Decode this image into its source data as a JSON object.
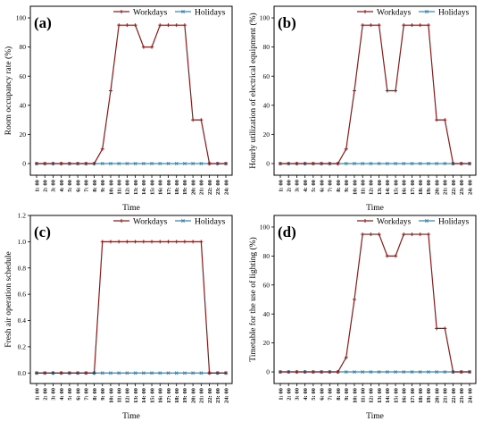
{
  "colors": {
    "workdays": "#8B1A1A",
    "holidays": "#3A86B0",
    "axis": "#000000"
  },
  "chart_data": [
    {
      "type": "line",
      "panel_label": "(a)",
      "xlabel": "Time",
      "ylabel": "Room occupancy rate (%)",
      "categories": [
        "1: 00",
        "2: 00",
        "3: 00",
        "4: 00",
        "5: 00",
        "6: 00",
        "7: 00",
        "8: 00",
        "9: 00",
        "10: 00",
        "11: 00",
        "12: 00",
        "13: 00",
        "14: 00",
        "15: 00",
        "16: 00",
        "17: 00",
        "18: 00",
        "19: 00",
        "20: 00",
        "21: 00",
        "22: 00",
        "23: 00",
        "24: 00"
      ],
      "ylim": [
        -8,
        108
      ],
      "yticks": [
        0,
        20,
        40,
        60,
        80,
        100
      ],
      "ytick_labels": [
        "0",
        "20",
        "40",
        "60",
        "80",
        "100"
      ],
      "legend": "top-right",
      "series": [
        {
          "name": "Workdays",
          "values": [
            0,
            0,
            0,
            0,
            0,
            0,
            0,
            0,
            10,
            50,
            95,
            95,
            95,
            80,
            80,
            95,
            95,
            95,
            95,
            30,
            30,
            0,
            0,
            0
          ]
        },
        {
          "name": "Holidays",
          "values": [
            0,
            0,
            0,
            0,
            0,
            0,
            0,
            0,
            0,
            0,
            0,
            0,
            0,
            0,
            0,
            0,
            0,
            0,
            0,
            0,
            0,
            0,
            0,
            0
          ]
        }
      ]
    },
    {
      "type": "line",
      "panel_label": "(b)",
      "xlabel": "Time",
      "ylabel": "Hourly utilization of electrical equipment (%)",
      "categories": [
        "1: 00",
        "2: 00",
        "3: 00",
        "4: 00",
        "5: 00",
        "6: 00",
        "7: 00",
        "8: 00",
        "9: 00",
        "10: 00",
        "11: 00",
        "12: 00",
        "13: 00",
        "14: 00",
        "15: 00",
        "16: 00",
        "17: 00",
        "18: 00",
        "19: 00",
        "20: 00",
        "21: 00",
        "22: 00",
        "23: 00",
        "24: 00"
      ],
      "ylim": [
        -8,
        108
      ],
      "yticks": [
        0,
        20,
        40,
        60,
        80,
        100
      ],
      "ytick_labels": [
        "0",
        "20",
        "40",
        "60",
        "80",
        "100"
      ],
      "legend": "top-right",
      "series": [
        {
          "name": "Workdays",
          "values": [
            0,
            0,
            0,
            0,
            0,
            0,
            0,
            0,
            10,
            50,
            95,
            95,
            95,
            50,
            50,
            95,
            95,
            95,
            95,
            30,
            30,
            0,
            0,
            0
          ]
        },
        {
          "name": "Holidays",
          "values": [
            0,
            0,
            0,
            0,
            0,
            0,
            0,
            0,
            0,
            0,
            0,
            0,
            0,
            0,
            0,
            0,
            0,
            0,
            0,
            0,
            0,
            0,
            0,
            0
          ]
        }
      ]
    },
    {
      "type": "line",
      "panel_label": "(c)",
      "xlabel": "Time",
      "ylabel": "Fresh air operation schedule",
      "categories": [
        "1: 00",
        "2: 00",
        "3: 00",
        "4: 00",
        "5: 00",
        "6: 00",
        "7: 00",
        "8: 00",
        "9: 00",
        "10: 00",
        "11: 00",
        "12: 00",
        "13: 00",
        "14: 00",
        "15: 00",
        "16: 00",
        "17: 00",
        "18: 00",
        "19: 00",
        "20: 00",
        "21: 00",
        "22: 00",
        "23: 00",
        "24: 00"
      ],
      "ylim": [
        -0.08,
        1.2
      ],
      "yticks": [
        0,
        0.2,
        0.4,
        0.6,
        0.8,
        1.0,
        1.2
      ],
      "ytick_labels": [
        "0.0",
        "0.2",
        "0.4",
        "0.6",
        "0.8",
        "1.0",
        "1.2"
      ],
      "legend": "top-right",
      "series": [
        {
          "name": "Workdays",
          "values": [
            0,
            0,
            0,
            0,
            0,
            0,
            0,
            0,
            1,
            1,
            1,
            1,
            1,
            1,
            1,
            1,
            1,
            1,
            1,
            1,
            1,
            0,
            0,
            0
          ]
        },
        {
          "name": "Holidays",
          "values": [
            0,
            0,
            0,
            0,
            0,
            0,
            0,
            0,
            0,
            0,
            0,
            0,
            0,
            0,
            0,
            0,
            0,
            0,
            0,
            0,
            0,
            0,
            0,
            0
          ]
        }
      ]
    },
    {
      "type": "line",
      "panel_label": "(d)",
      "xlabel": "Time",
      "ylabel": "Timetable for the use of lighting (%)",
      "categories": [
        "1: 00",
        "2: 00",
        "3: 00",
        "4: 00",
        "5: 00",
        "6: 00",
        "7: 00",
        "8: 00",
        "9: 00",
        "10: 00",
        "11: 00",
        "12: 00",
        "13: 00",
        "14: 00",
        "15: 00",
        "16: 00",
        "17: 00",
        "18: 00",
        "19: 00",
        "20: 00",
        "21: 00",
        "22: 00",
        "23: 00",
        "24: 00"
      ],
      "ylim": [
        -8,
        108
      ],
      "yticks": [
        0,
        20,
        40,
        60,
        80,
        100
      ],
      "ytick_labels": [
        "0",
        "20",
        "40",
        "60",
        "80",
        "100"
      ],
      "legend": "top-right",
      "series": [
        {
          "name": "Workdays",
          "values": [
            0,
            0,
            0,
            0,
            0,
            0,
            0,
            0,
            10,
            50,
            95,
            95,
            95,
            80,
            80,
            95,
            95,
            95,
            95,
            30,
            30,
            0,
            0,
            0
          ]
        },
        {
          "name": "Holidays",
          "values": [
            0,
            0,
            0,
            0,
            0,
            0,
            0,
            0,
            0,
            0,
            0,
            0,
            0,
            0,
            0,
            0,
            0,
            0,
            0,
            0,
            0,
            0,
            0,
            0
          ]
        }
      ]
    }
  ]
}
